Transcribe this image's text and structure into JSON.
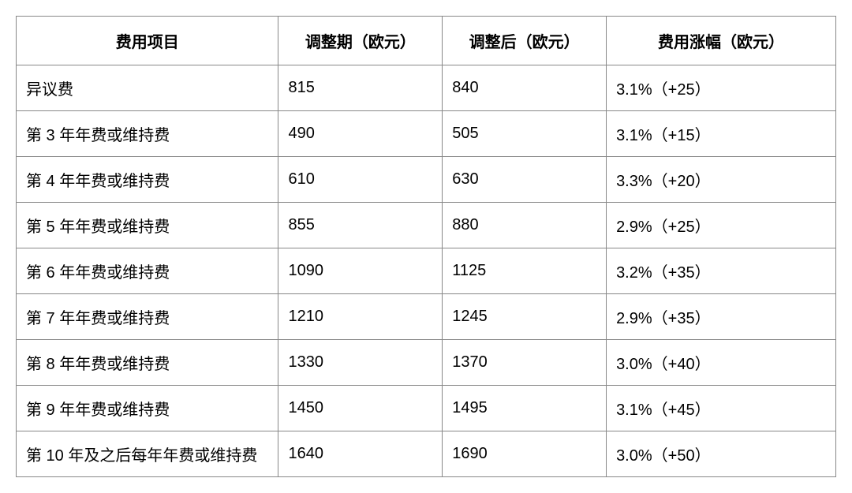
{
  "table": {
    "columns": [
      "费用项目",
      "调整期（欧元）",
      "调整后（欧元）",
      "费用涨幅（欧元）"
    ],
    "rows": [
      [
        "异议费",
        "815",
        "840",
        "3.1%（+25）"
      ],
      [
        "第 3 年年费或维持费",
        "490",
        "505",
        "3.1%（+15）"
      ],
      [
        "第 4 年年费或维持费",
        "610",
        "630",
        "3.3%（+20）"
      ],
      [
        "第 5 年年费或维持费",
        "855",
        "880",
        "2.9%（+25）"
      ],
      [
        "第 6 年年费或维持费",
        "1090",
        "1125",
        "3.2%（+35）"
      ],
      [
        "第 7 年年费或维持费",
        "1210",
        "1245",
        "2.9%（+35）"
      ],
      [
        "第 8 年年费或维持费",
        "1330",
        "1370",
        "3.0%（+40）"
      ],
      [
        "第 9 年年费或维持费",
        "1450",
        "1495",
        "3.1%（+45）"
      ],
      [
        "第 10 年及之后每年年费或维持费",
        "1640",
        "1690",
        "3.0%（+50）"
      ]
    ],
    "border_color": "#888888",
    "background_color": "#ffffff",
    "text_color": "#000000",
    "header_fontsize": 20,
    "cell_fontsize": 20,
    "column_widths": [
      "32%",
      "20%",
      "20%",
      "28%"
    ]
  }
}
